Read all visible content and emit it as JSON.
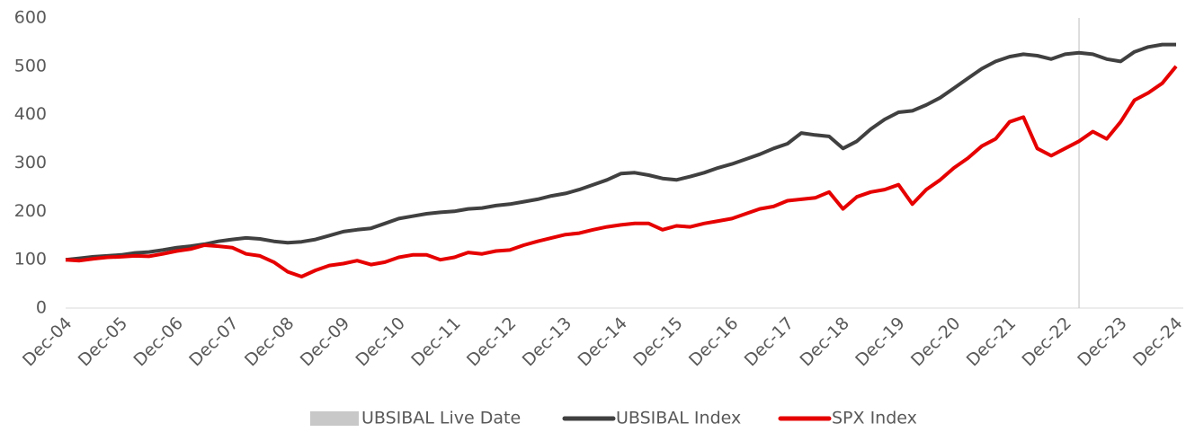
{
  "chart_data": {
    "type": "line",
    "categories": [
      "Dec-04",
      null,
      null,
      null,
      "Dec-05",
      null,
      null,
      null,
      "Dec-06",
      null,
      null,
      null,
      "Dec-07",
      null,
      null,
      null,
      "Dec-08",
      null,
      null,
      null,
      "Dec-09",
      null,
      null,
      null,
      "Dec-10",
      null,
      null,
      null,
      "Dec-11",
      null,
      null,
      null,
      "Dec-12",
      null,
      null,
      null,
      "Dec-13",
      null,
      null,
      null,
      "Dec-14",
      null,
      null,
      null,
      "Dec-15",
      null,
      null,
      null,
      "Dec-16",
      null,
      null,
      null,
      "Dec-17",
      null,
      null,
      null,
      "Dec-18",
      null,
      null,
      null,
      "Dec-19",
      null,
      null,
      null,
      "Dec-20",
      null,
      null,
      null,
      "Dec-21",
      null,
      null,
      null,
      "Dec-22",
      null,
      null,
      null,
      "Dec-23",
      null,
      null,
      null,
      "Dec-24"
    ],
    "series": [
      {
        "name": "UBSIBAL Live Date",
        "type": "bar",
        "color": "#c8c8c8",
        "values": [
          null,
          null,
          null,
          null,
          null,
          null,
          null,
          null,
          null,
          null,
          null,
          null,
          null,
          null,
          null,
          null,
          null,
          null,
          null,
          null,
          null,
          null,
          null,
          null,
          null,
          null,
          null,
          null,
          null,
          null,
          null,
          null,
          null,
          null,
          null,
          null,
          null,
          null,
          null,
          null,
          null,
          null,
          null,
          null,
          null,
          null,
          null,
          null,
          null,
          null,
          null,
          null,
          null,
          null,
          null,
          null,
          null,
          null,
          null,
          null,
          null,
          null,
          null,
          null,
          null,
          null,
          null,
          null,
          null,
          null,
          null,
          null,
          null,
          600,
          null,
          null,
          null,
          null,
          null,
          null,
          null
        ]
      },
      {
        "name": "UBSIBAL Index",
        "color": "#404040",
        "values": [
          100,
          103,
          106,
          108,
          110,
          114,
          116,
          120,
          125,
          128,
          132,
          138,
          142,
          145,
          143,
          138,
          135,
          137,
          142,
          150,
          158,
          162,
          165,
          175,
          185,
          190,
          195,
          198,
          200,
          205,
          207,
          212,
          215,
          220,
          225,
          232,
          237,
          245,
          255,
          265,
          278,
          280,
          275,
          268,
          265,
          272,
          280,
          290,
          298,
          308,
          318,
          330,
          340,
          362,
          358,
          355,
          330,
          345,
          370,
          390,
          405,
          408,
          420,
          435,
          455,
          475,
          495,
          510,
          520,
          525,
          522,
          515,
          525,
          528,
          525,
          515,
          510,
          530,
          540,
          545,
          545
        ]
      },
      {
        "name": "SPX Index",
        "color": "#e60000",
        "values": [
          100,
          98,
          102,
          105,
          106,
          108,
          107,
          112,
          118,
          122,
          130,
          128,
          125,
          112,
          108,
          95,
          75,
          65,
          78,
          88,
          92,
          98,
          90,
          95,
          105,
          110,
          110,
          100,
          105,
          115,
          112,
          118,
          120,
          130,
          138,
          145,
          152,
          155,
          162,
          168,
          172,
          175,
          175,
          162,
          170,
          168,
          175,
          180,
          185,
          195,
          205,
          210,
          222,
          225,
          228,
          240,
          205,
          230,
          240,
          245,
          255,
          215,
          245,
          265,
          290,
          310,
          335,
          350,
          385,
          395,
          330,
          315,
          330,
          345,
          365,
          350,
          385,
          430,
          445,
          465,
          500
        ]
      }
    ],
    "ylim": [
      0,
      600
    ],
    "yticks": [
      0,
      100,
      200,
      300,
      400,
      500,
      600
    ],
    "grid": false,
    "legend": "bottom"
  }
}
